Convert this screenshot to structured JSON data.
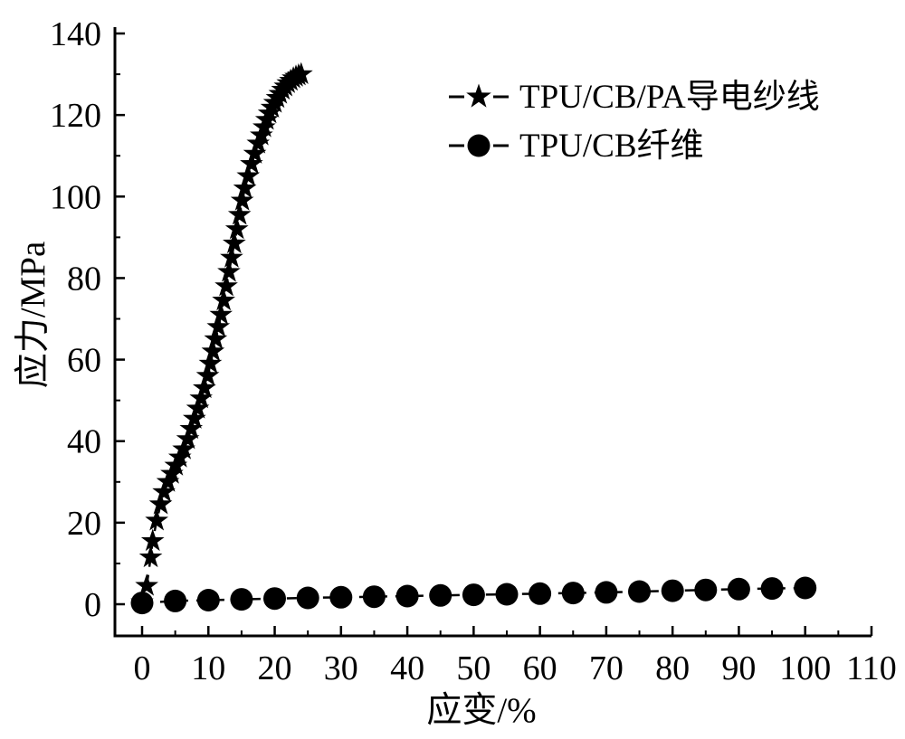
{
  "figure": {
    "background": "#ffffff",
    "ink": "#000000"
  },
  "chart_data": {
    "type": "line",
    "title": "",
    "xlabel": "应变/%",
    "ylabel": "应力/MPa",
    "xlim": [
      -4,
      110
    ],
    "ylim": [
      -8,
      142
    ],
    "grid": false,
    "legend_position": "upper-right",
    "x_major_ticks": [
      0,
      10,
      20,
      30,
      40,
      50,
      60,
      70,
      80,
      90,
      100,
      110
    ],
    "x_minor_ticks": [
      5,
      15,
      25,
      35,
      45,
      55,
      65,
      75,
      85,
      95,
      105
    ],
    "y_major_ticks": [
      0,
      20,
      40,
      60,
      80,
      100,
      120,
      140
    ],
    "y_minor_ticks": [
      10,
      30,
      50,
      70,
      90,
      110,
      130
    ],
    "series": [
      {
        "name": "TPU/CB/PA导电纱线",
        "marker": "star",
        "color": "#000000",
        "line_style": "dashed",
        "points": [
          [
            0,
            0.5
          ],
          [
            0.7,
            4.5
          ],
          [
            1.3,
            11.5
          ],
          [
            1.6,
            15.5
          ],
          [
            2.2,
            20.5
          ],
          [
            2.8,
            24.5
          ],
          [
            3.3,
            27.5
          ],
          [
            3.9,
            30
          ],
          [
            4.5,
            32
          ],
          [
            5.1,
            34
          ],
          [
            5.7,
            36
          ],
          [
            6.3,
            38
          ],
          [
            6.9,
            40.5
          ],
          [
            7.4,
            43
          ],
          [
            7.9,
            45.5
          ],
          [
            8.4,
            48
          ],
          [
            8.9,
            50.5
          ],
          [
            9.4,
            53
          ],
          [
            9.9,
            56
          ],
          [
            10.3,
            59
          ],
          [
            10.7,
            62
          ],
          [
            11.1,
            65
          ],
          [
            11.5,
            68
          ],
          [
            11.9,
            71
          ],
          [
            12.3,
            74.5
          ],
          [
            12.7,
            78
          ],
          [
            13.1,
            81.5
          ],
          [
            13.5,
            85
          ],
          [
            13.9,
            88.5
          ],
          [
            14.3,
            92
          ],
          [
            14.7,
            95.5
          ],
          [
            15.1,
            99
          ],
          [
            15.5,
            102
          ],
          [
            16,
            105
          ],
          [
            16.5,
            108
          ],
          [
            17,
            110.5
          ],
          [
            17.5,
            113
          ],
          [
            18,
            115
          ],
          [
            18.4,
            117
          ],
          [
            18.8,
            118.8
          ],
          [
            19.2,
            120.4
          ],
          [
            19.6,
            121.8
          ],
          [
            20,
            123
          ],
          [
            20.4,
            124.2
          ],
          [
            20.8,
            125.2
          ],
          [
            21.2,
            126.2
          ],
          [
            21.6,
            127
          ],
          [
            22,
            127.8
          ],
          [
            22.4,
            128.4
          ],
          [
            22.8,
            129
          ],
          [
            23.2,
            129.4
          ],
          [
            23.6,
            129.7
          ],
          [
            24,
            130
          ]
        ]
      },
      {
        "name": "TPU/CB纤维",
        "marker": "circle",
        "color": "#000000",
        "line_style": "dashed",
        "points": [
          [
            0,
            0.3
          ],
          [
            5,
            0.8
          ],
          [
            10,
            1.0
          ],
          [
            15,
            1.2
          ],
          [
            20,
            1.4
          ],
          [
            25,
            1.55
          ],
          [
            30,
            1.7
          ],
          [
            35,
            1.85
          ],
          [
            40,
            2.0
          ],
          [
            45,
            2.15
          ],
          [
            50,
            2.3
          ],
          [
            55,
            2.45
          ],
          [
            60,
            2.6
          ],
          [
            65,
            2.75
          ],
          [
            70,
            2.9
          ],
          [
            75,
            3.1
          ],
          [
            80,
            3.3
          ],
          [
            85,
            3.5
          ],
          [
            90,
            3.7
          ],
          [
            95,
            3.85
          ],
          [
            100,
            4.0
          ]
        ]
      }
    ]
  },
  "legend": {
    "items": [
      {
        "label": "TPU/CB/PA导电纱线",
        "marker": "star-marker-icon"
      },
      {
        "label": "TPU/CB纤维",
        "marker": "circle-marker-icon"
      }
    ]
  }
}
